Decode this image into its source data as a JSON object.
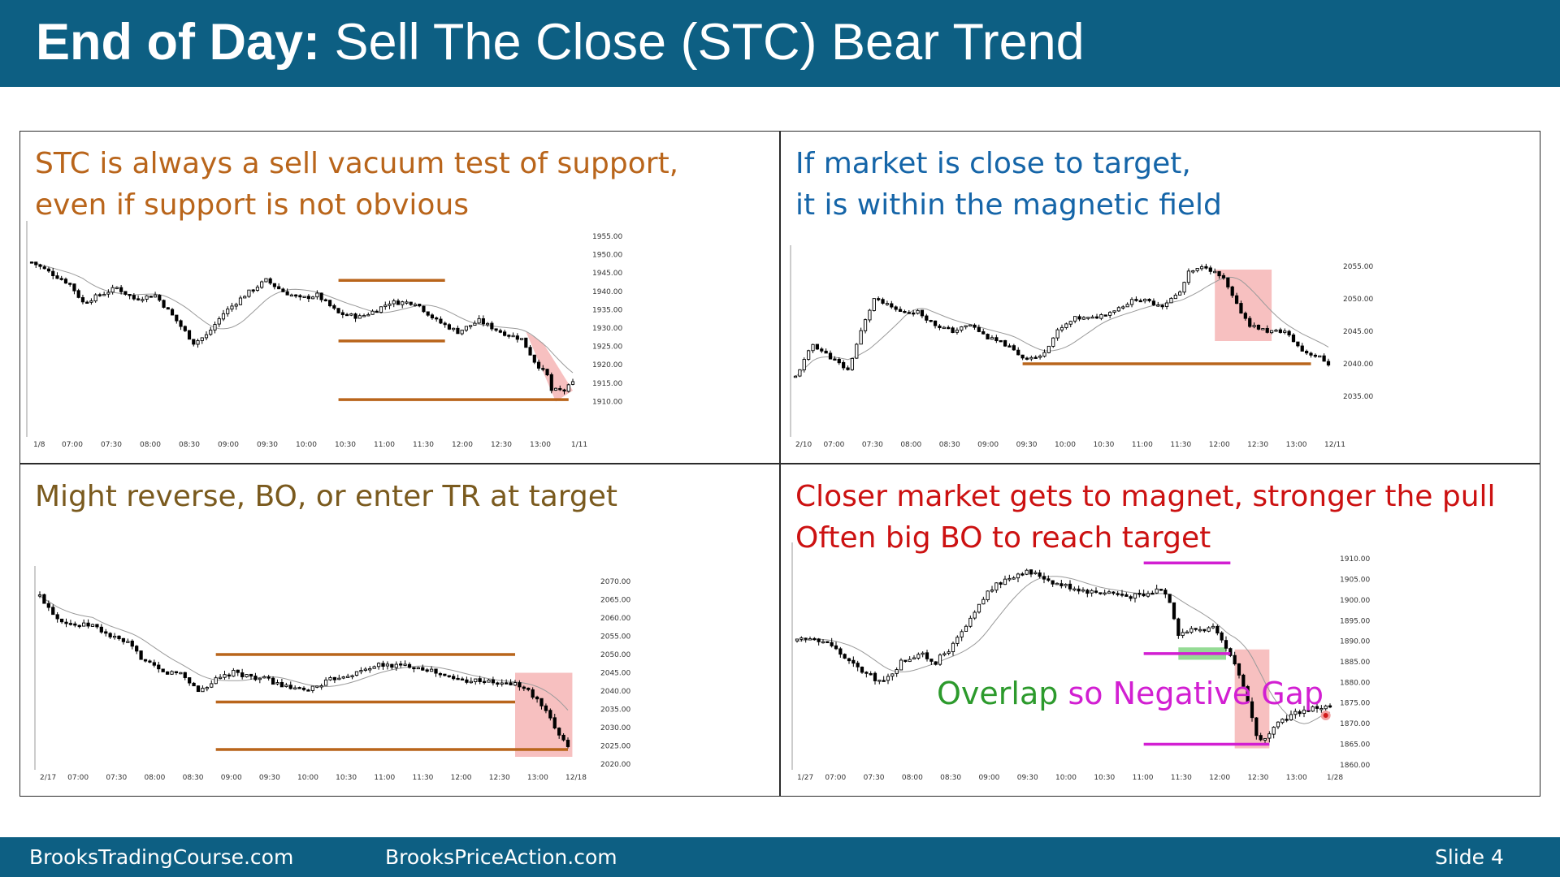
{
  "slide": {
    "title_bold": "End of Day:",
    "title_rest": " Sell The Close (STC) Bear Trend",
    "footer_left": "BrooksTradingCourse.com",
    "footer_mid": "BrooksPriceAction.com",
    "footer_right": "Slide  4"
  },
  "colors": {
    "header": "#0d5f83",
    "orange": "#b9651b",
    "blue": "#1565a8",
    "brown": "#7a5a1e",
    "red": "#cc1111",
    "magenta": "#d21fd2",
    "green": "#2c9a2c",
    "box": "#f3a5a5",
    "greenbox": "#7ad27a",
    "bull": "#ffffff",
    "bear": "#000000"
  },
  "panels": [
    {
      "caption": [
        "STC is always a sell vacuum test of support,",
        "even if support is not obvious"
      ],
      "caption_color": "#b9651b"
    },
    {
      "caption": [
        "If market is close to target,",
        "it is within the magnetic field"
      ],
      "caption_color": "#1565a8"
    },
    {
      "caption": [
        "Might reverse, BO, or enter TR at target"
      ],
      "caption_color": "#7a5a1e"
    },
    {
      "caption": [
        "Closer market gets to magnet, stronger the pull",
        "Often big BO to reach target"
      ],
      "caption_color": "#cc1111",
      "annotation": {
        "part1": "Overlap",
        "part2": " so Negative Gap"
      }
    }
  ],
  "chart_data": [
    {
      "type": "candlestick",
      "x_ticks": [
        "1/8",
        "07:00",
        "07:30",
        "08:00",
        "08:30",
        "09:00",
        "09:30",
        "10:00",
        "10:30",
        "11:00",
        "11:30",
        "12:00",
        "12:30",
        "13:00",
        "1/11"
      ],
      "y_ticks": [
        "1955.00",
        "1950.00",
        "1945.00",
        "1940.00",
        "1935.00",
        "1930.00",
        "1925.00",
        "1920.00",
        "1915.00",
        "1910.00"
      ],
      "ylim": [
        1907,
        1957
      ],
      "path": [
        [
          0,
          1948
        ],
        [
          3,
          1946
        ],
        [
          6,
          1944
        ],
        [
          9,
          1942
        ],
        [
          12,
          1937
        ],
        [
          16,
          1939
        ],
        [
          20,
          1941
        ],
        [
          24,
          1938
        ],
        [
          29,
          1939
        ],
        [
          34,
          1932
        ],
        [
          38,
          1926
        ],
        [
          41,
          1928
        ],
        [
          45,
          1934
        ],
        [
          50,
          1939
        ],
        [
          55,
          1943
        ],
        [
          59,
          1940
        ],
        [
          63,
          1938
        ],
        [
          67,
          1939
        ],
        [
          72,
          1934
        ],
        [
          77,
          1933
        ],
        [
          81,
          1935
        ],
        [
          84,
          1937
        ],
        [
          90,
          1937
        ],
        [
          95,
          1932
        ],
        [
          100,
          1929
        ],
        [
          105,
          1932
        ],
        [
          110,
          1929
        ],
        [
          115,
          1927
        ],
        [
          118,
          1921
        ],
        [
          121,
          1917
        ],
        [
          122,
          1913
        ],
        [
          125,
          1913
        ],
        [
          127,
          1915
        ]
      ],
      "resistance_lines": [
        1943.0,
        1926.5,
        1910.5
      ],
      "stc_box": true
    },
    {
      "type": "candlestick",
      "x_ticks": [
        "2/10",
        "07:00",
        "07:30",
        "08:00",
        "08:30",
        "09:00",
        "09:30",
        "10:00",
        "10:30",
        "11:00",
        "11:30",
        "12:00",
        "12:30",
        "13:00",
        "12/11"
      ],
      "y_ticks": [
        "2055.00",
        "2050.00",
        "2045.00",
        "2040.00",
        "2035.00"
      ],
      "ylim": [
        2033,
        2057
      ],
      "path": [
        [
          0,
          2038
        ],
        [
          4,
          2043
        ],
        [
          8,
          2041
        ],
        [
          12,
          2039
        ],
        [
          15,
          2045
        ],
        [
          18,
          2050
        ],
        [
          21,
          2049
        ],
        [
          24,
          2048
        ],
        [
          28,
          2048
        ],
        [
          32,
          2046
        ],
        [
          36,
          2045
        ],
        [
          40,
          2046
        ],
        [
          44,
          2044
        ],
        [
          48,
          2043
        ],
        [
          52,
          2041
        ],
        [
          56,
          2041
        ],
        [
          60,
          2045
        ],
        [
          64,
          2047
        ],
        [
          68,
          2047
        ],
        [
          72,
          2048
        ],
        [
          78,
          2050
        ],
        [
          84,
          2049
        ],
        [
          88,
          2051
        ],
        [
          90,
          2054
        ],
        [
          94,
          2055
        ],
        [
          98,
          2053
        ],
        [
          101,
          2049
        ],
        [
          104,
          2046
        ],
        [
          108,
          2045
        ],
        [
          112,
          2045
        ],
        [
          116,
          2042
        ],
        [
          120,
          2041
        ],
        [
          122,
          2040
        ]
      ],
      "support_line": 2040.0,
      "stc_box": true
    },
    {
      "type": "candlestick",
      "x_ticks": [
        "2/17",
        "07:00",
        "07:30",
        "08:00",
        "08:30",
        "09:00",
        "09:30",
        "10:00",
        "10:30",
        "11:00",
        "11:30",
        "12:00",
        "12:30",
        "13:00",
        "12/18"
      ],
      "y_ticks": [
        "2070.00",
        "2065.00",
        "2060.00",
        "2055.00",
        "2050.00",
        "2045.00",
        "2040.00",
        "2035.00",
        "2030.00",
        "2025.00",
        "2020.00"
      ],
      "ylim": [
        2018,
        2072
      ],
      "path": [
        [
          0,
          2066
        ],
        [
          4,
          2060
        ],
        [
          8,
          2058
        ],
        [
          12,
          2058
        ],
        [
          16,
          2055
        ],
        [
          20,
          2053
        ],
        [
          24,
          2048
        ],
        [
          28,
          2045
        ],
        [
          32,
          2045
        ],
        [
          36,
          2040
        ],
        [
          40,
          2043
        ],
        [
          44,
          2045
        ],
        [
          48,
          2044
        ],
        [
          52,
          2043
        ],
        [
          56,
          2041
        ],
        [
          60,
          2040
        ],
        [
          64,
          2042
        ],
        [
          68,
          2044
        ],
        [
          72,
          2045
        ],
        [
          76,
          2047
        ],
        [
          80,
          2047
        ],
        [
          84,
          2047
        ],
        [
          88,
          2046
        ],
        [
          92,
          2044
        ],
        [
          96,
          2043
        ],
        [
          100,
          2043
        ],
        [
          104,
          2042
        ],
        [
          108,
          2042
        ],
        [
          111,
          2040
        ],
        [
          114,
          2036
        ],
        [
          117,
          2030
        ],
        [
          120,
          2025
        ]
      ],
      "range_lines": [
        2050.0,
        2037.0,
        2024.0
      ],
      "stc_box": true
    },
    {
      "type": "candlestick",
      "x_ticks": [
        "1/27",
        "07:00",
        "07:30",
        "08:00",
        "08:30",
        "09:00",
        "09:30",
        "10:00",
        "10:30",
        "11:00",
        "11:30",
        "12:00",
        "12:30",
        "13:00",
        "1/28"
      ],
      "y_ticks": [
        "1910.00",
        "1905.00",
        "1900.00",
        "1895.00",
        "1890.00",
        "1885.00",
        "1880.00",
        "1875.00",
        "1870.00",
        "1865.00",
        "1860.00"
      ],
      "ylim": [
        1858,
        1912
      ],
      "path": [
        [
          0,
          1890
        ],
        [
          4,
          1891
        ],
        [
          8,
          1889
        ],
        [
          12,
          1885
        ],
        [
          16,
          1882
        ],
        [
          20,
          1880
        ],
        [
          24,
          1885
        ],
        [
          28,
          1887
        ],
        [
          32,
          1885
        ],
        [
          36,
          1889
        ],
        [
          40,
          1895
        ],
        [
          44,
          1902
        ],
        [
          48,
          1905
        ],
        [
          52,
          1907
        ],
        [
          56,
          1906
        ],
        [
          60,
          1904
        ],
        [
          64,
          1903
        ],
        [
          68,
          1902
        ],
        [
          72,
          1902
        ],
        [
          76,
          1901
        ],
        [
          80,
          1901
        ],
        [
          84,
          1903
        ],
        [
          86,
          1900
        ],
        [
          88,
          1892
        ],
        [
          92,
          1893
        ],
        [
          96,
          1893
        ],
        [
          99,
          1888
        ],
        [
          102,
          1882
        ],
        [
          104,
          1876
        ],
        [
          106,
          1867
        ],
        [
          108,
          1866
        ],
        [
          112,
          1871
        ],
        [
          116,
          1873
        ],
        [
          120,
          1874
        ],
        [
          123,
          1874
        ]
      ],
      "magnet_lines": [
        1909.0,
        1887.0,
        1865.0
      ],
      "overlap_box": true,
      "stc_box": true
    }
  ]
}
